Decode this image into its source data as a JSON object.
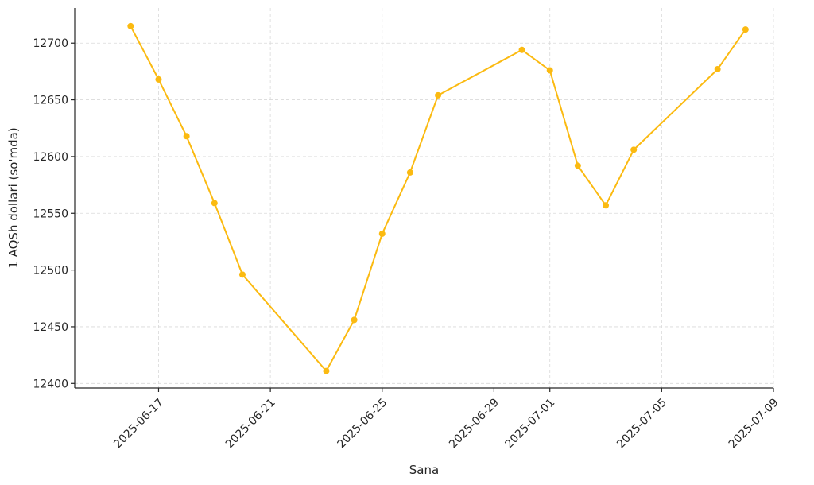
{
  "chart_data": {
    "type": "line",
    "title": "",
    "xlabel": "Sana",
    "ylabel": "1 AQSh dollari (so'mda)",
    "xlim": [
      "2025-06-14",
      "2025-07-09"
    ],
    "ylim": [
      12396,
      12731
    ],
    "x_ticks": [
      "2025-06-17",
      "2025-06-21",
      "2025-06-25",
      "2025-06-29",
      "2025-07-01",
      "2025-07-05",
      "2025-07-09"
    ],
    "y_ticks": [
      12400,
      12450,
      12500,
      12550,
      12600,
      12650,
      12700
    ],
    "grid": true,
    "color": "#FBBA11",
    "series": [
      {
        "x": [
          "2025-06-16",
          "2025-06-17",
          "2025-06-18",
          "2025-06-19",
          "2025-06-20",
          "2025-06-23",
          "2025-06-24",
          "2025-06-25",
          "2025-06-26",
          "2025-06-27",
          "2025-06-30",
          "2025-07-01",
          "2025-07-02",
          "2025-07-03",
          "2025-07-04",
          "2025-07-07",
          "2025-07-08"
        ],
        "values": [
          12715,
          12668,
          12618,
          12559,
          12496,
          12411,
          12456,
          12532,
          12586,
          12654,
          12694,
          12676,
          12592,
          12557,
          12606,
          12677,
          12712
        ]
      }
    ]
  }
}
